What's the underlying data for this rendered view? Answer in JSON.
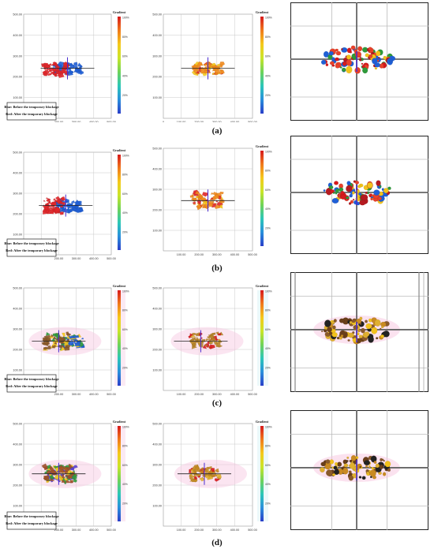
{
  "figure": {
    "rows": [
      {
        "label": "(a)",
        "legend_line1": "Blue: Before the temporary blockage",
        "legend_line2": "Red: After the temporary blockage"
      },
      {
        "label": "(b)",
        "legend_line1": "Blue: Before the temporary blockage",
        "legend_line2": "Red: After the temporary blockage"
      },
      {
        "label": "(c)",
        "legend_line1": "Blue: Before the temporary blockage",
        "legend_line2": "Red: After the temporary blockage"
      },
      {
        "label": "(d)",
        "legend_line1": "Blue: Before the temporary blockage",
        "legend_line2": "Red: After the temporary blockage"
      }
    ]
  },
  "chart_data": [
    {
      "type": "scatter",
      "panel": "a-left",
      "colorbar_title": "Gradient",
      "xticks": [
        "200.00",
        "300.00",
        "400.00",
        "500.00"
      ],
      "yticks": [
        "500.00",
        "400.00",
        "300.00",
        "200.00",
        "100.00"
      ],
      "cbar_ticks": [
        "100%",
        "80%",
        "60%",
        "40%",
        "20%"
      ],
      "xlim": [
        0,
        500
      ],
      "ylim": [
        0,
        500
      ],
      "center": [
        250,
        240
      ],
      "clusters": [
        {
          "name": "Blue: Before the temporary blockage",
          "color": "#1f5fd6",
          "x": [
            170,
            330
          ],
          "y": [
            215,
            265
          ]
        },
        {
          "name": "Red: After the temporary blockage",
          "color": "#e0262a",
          "x": [
            110,
            250
          ],
          "y": [
            205,
            265
          ]
        }
      ]
    },
    {
      "type": "scatter",
      "panel": "a-mid",
      "colorbar_title": "Gradient",
      "xticks": [
        "0",
        "100.00",
        "200.00",
        "300.00",
        "400.00",
        "500.00"
      ],
      "yticks": [
        "500.00",
        "400.00",
        "300.00",
        "200.00",
        "100.00"
      ],
      "cbar_ticks": [
        "100%",
        "80%",
        "60%",
        "40%",
        "20%"
      ],
      "xlim": [
        0,
        500
      ],
      "ylim": [
        0,
        500
      ],
      "center": [
        250,
        240
      ],
      "clusters": [
        {
          "name": "",
          "color": "#f08a1c",
          "x": [
            170,
            330
          ],
          "y": [
            210,
            265
          ]
        }
      ]
    },
    {
      "type": "scatter",
      "panel": "b-left",
      "colorbar_title": "Gradient",
      "xticks": [
        "200.00",
        "300.00",
        "400.00",
        "500.00"
      ],
      "yticks": [
        "500.00",
        "400.00",
        "300.00",
        "200.00",
        "100.00"
      ],
      "cbar_ticks": [
        "100%",
        "80%",
        "60%",
        "40%",
        "20%"
      ],
      "xlim": [
        0,
        500
      ],
      "ylim": [
        0,
        500
      ],
      "center": [
        240,
        240
      ],
      "clusters": [
        {
          "name": "Blue: Before the temporary blockage",
          "color": "#1f5fd6",
          "x": [
            180,
            330
          ],
          "y": [
            210,
            265
          ]
        },
        {
          "name": "Red: After the temporary blockage",
          "color": "#e0262a",
          "x": [
            110,
            230
          ],
          "y": [
            200,
            275
          ]
        }
      ]
    },
    {
      "type": "scatter",
      "panel": "b-mid",
      "colorbar_title": "Gradient",
      "xticks": [
        "100.00",
        "200.00",
        "300.00",
        "400.00",
        "500.00"
      ],
      "yticks": [
        "500.00",
        "400.00",
        "300.00",
        "200.00",
        "100.00"
      ],
      "cbar_ticks": [
        "100%",
        "80%",
        "60%",
        "40%",
        "20%"
      ],
      "xlim": [
        0,
        500
      ],
      "ylim": [
        0,
        500
      ],
      "center": [
        250,
        245
      ],
      "clusters": [
        {
          "name": "",
          "color": "#f08a1c",
          "x": [
            160,
            330
          ],
          "y": [
            205,
            285
          ]
        }
      ]
    },
    {
      "type": "scatter",
      "panel": "c-left",
      "colorbar_title": "Gradient",
      "xticks": [
        "200.00",
        "300.00",
        "400.00",
        "500.00"
      ],
      "yticks": [
        "500.00",
        "400.00",
        "300.00",
        "200.00",
        "100.00"
      ],
      "cbar_ticks": [
        "100%",
        "80%",
        "60%",
        "40%",
        "20%"
      ],
      "xlim": [
        0,
        500
      ],
      "ylim": [
        0,
        500
      ],
      "center": [
        200,
        240
      ],
      "clusters": [
        {
          "name": "Blue: Before the temporary blockage",
          "color": "#1f5fd6",
          "x": [
            190,
            340
          ],
          "y": [
            210,
            265
          ]
        },
        {
          "name": "Red: After the temporary blockage",
          "color": "#8a5a2a",
          "x": [
            110,
            260
          ],
          "y": [
            200,
            280
          ]
        }
      ]
    },
    {
      "type": "scatter",
      "panel": "c-mid",
      "colorbar_title": "Gradient",
      "xticks": [
        "100.00",
        "200.00",
        "300.00",
        "400.00",
        "500.00"
      ],
      "yticks": [
        "500.00",
        "400.00",
        "300.00",
        "200.00",
        "100.00"
      ],
      "cbar_ticks": [
        "100%",
        "80%",
        "60%",
        "40%",
        "20%"
      ],
      "xlim": [
        0,
        500
      ],
      "ylim": [
        0,
        500
      ],
      "center": [
        210,
        240
      ],
      "clusters": [
        {
          "name": "",
          "color": "#b8862a",
          "x": [
            150,
            330
          ],
          "y": [
            210,
            280
          ]
        }
      ]
    },
    {
      "type": "scatter",
      "panel": "d-left",
      "colorbar_title": "Gradient",
      "xticks": [
        "200.00",
        "300.00",
        "400.00",
        "500.00"
      ],
      "yticks": [
        "500.00",
        "400.00",
        "300.00",
        "200.00",
        "100.00"
      ],
      "cbar_ticks": [
        "100%",
        "80%",
        "60%",
        "40%",
        "20%"
      ],
      "xlim": [
        0,
        500
      ],
      "ylim": [
        0,
        500
      ],
      "center": [
        200,
        255
      ],
      "clusters": [
        {
          "name": "Blue: Before the temporary blockage",
          "color": "#5a3fd0",
          "x": [
            130,
            300
          ],
          "y": [
            215,
            290
          ]
        },
        {
          "name": "Red: After the temporary blockage",
          "color": "#a0502a",
          "x": [
            120,
            290
          ],
          "y": [
            210,
            295
          ]
        }
      ]
    },
    {
      "type": "scatter",
      "panel": "d-mid",
      "colorbar_title": "Gradient",
      "xticks": [
        "100.00",
        "200.00",
        "300.00",
        "400.00",
        "500.00"
      ],
      "yticks": [
        "500.00",
        "400.00",
        "300.00",
        "200.00",
        "100.00"
      ],
      "cbar_ticks": [
        "100%",
        "80%",
        "60%",
        "40%",
        "20%"
      ],
      "xlim": [
        0,
        500
      ],
      "ylim": [
        0,
        500
      ],
      "center": [
        230,
        255
      ],
      "clusters": [
        {
          "name": "",
          "color": "#c48a22",
          "x": [
            150,
            320
          ],
          "y": [
            220,
            295
          ]
        }
      ]
    }
  ],
  "icons": {
    "crosshair": "crosshair-icon"
  },
  "colors": {
    "grid": "#c8c8c8",
    "frame": "#222222",
    "bold_axis": "#666666"
  }
}
